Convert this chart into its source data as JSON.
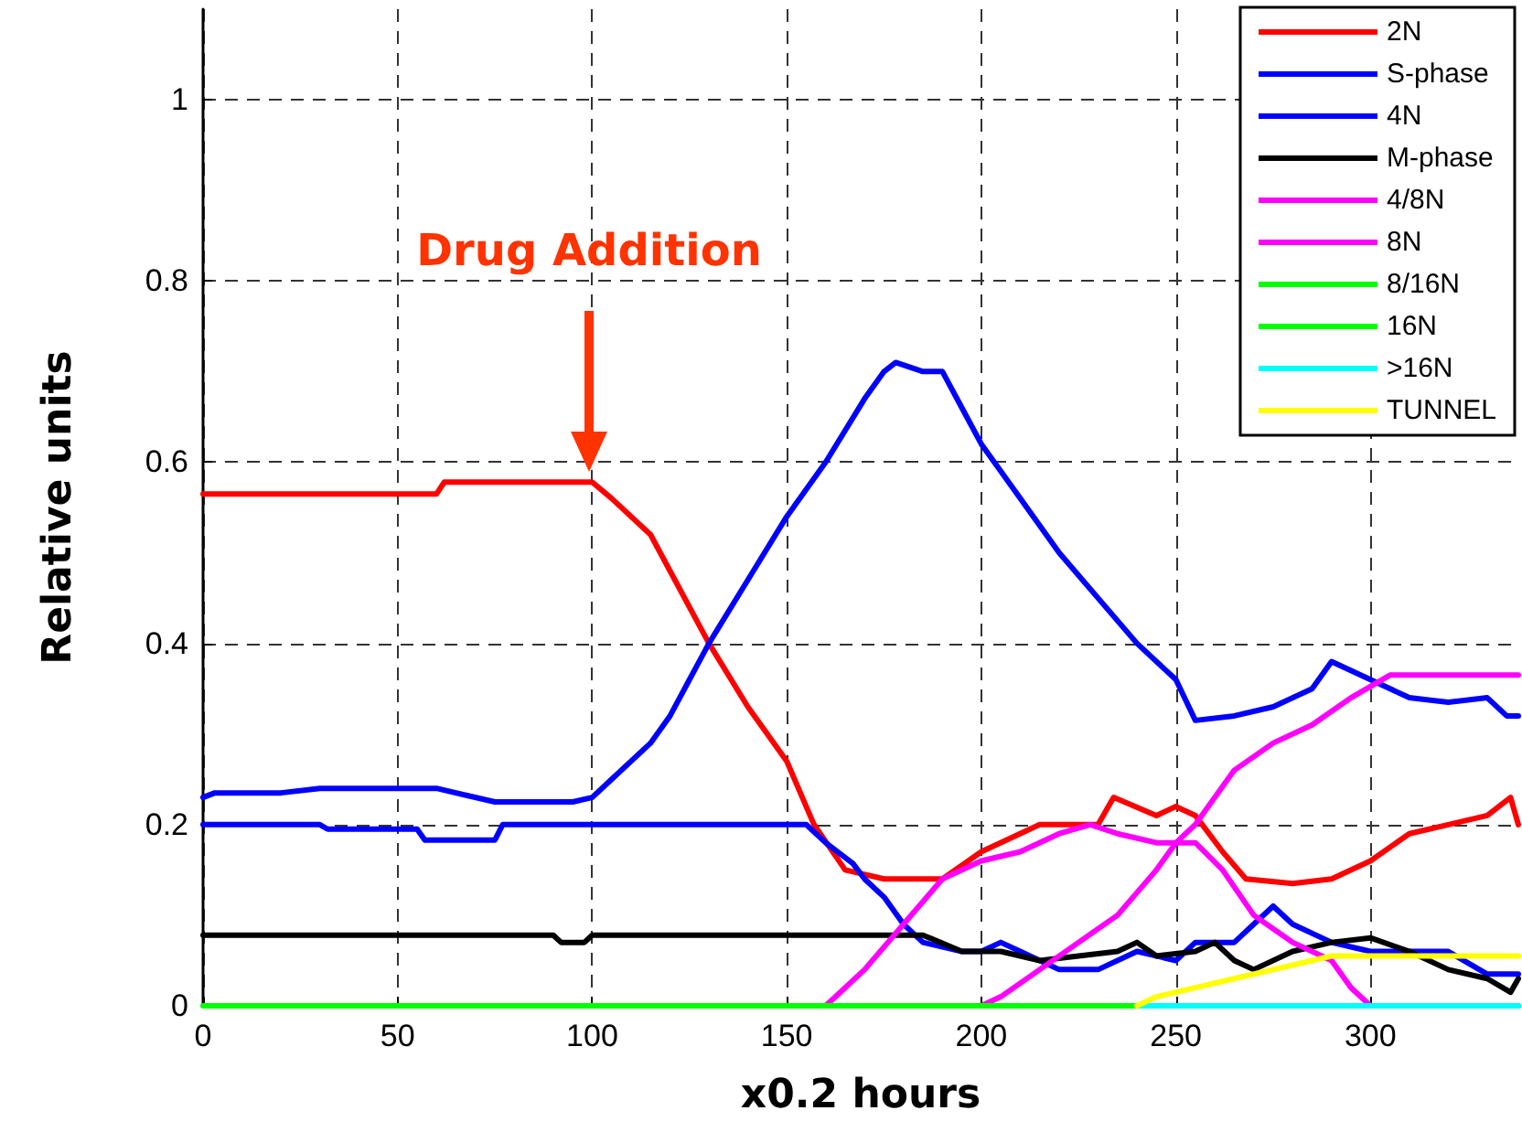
{
  "chart_data": {
    "type": "line",
    "xlabel": "x0.2 hours",
    "ylabel": "Relative units",
    "annotations": [
      "Drug Addition"
    ],
    "xlim": [
      0,
      338
    ],
    "xticks": [
      0,
      50,
      100,
      150,
      200,
      250,
      300
    ],
    "ylim": [
      0,
      1.1
    ],
    "yticks": [
      0,
      0.2,
      0.4,
      0.6,
      0.8,
      1
    ],
    "grid": true,
    "legend": "top right",
    "line_style": "solid",
    "series": [
      {
        "name": "2N",
        "color": "#ff0000",
        "x": [
          0,
          60,
          62,
          100,
          105,
          115,
          125,
          130,
          140,
          150,
          157,
          165,
          175,
          190,
          200,
          215,
          230,
          234,
          245,
          250,
          255,
          262,
          268,
          280,
          290,
          300,
          310,
          320,
          330,
          336,
          338
        ],
        "values": [
          0.565,
          0.565,
          0.578,
          0.578,
          0.56,
          0.52,
          0.44,
          0.4,
          0.33,
          0.27,
          0.2,
          0.15,
          0.14,
          0.14,
          0.17,
          0.2,
          0.2,
          0.23,
          0.21,
          0.22,
          0.21,
          0.17,
          0.14,
          0.135,
          0.14,
          0.16,
          0.19,
          0.2,
          0.21,
          0.23,
          0.2
        ]
      },
      {
        "name": "S-phase",
        "color": "#0000ff",
        "x": [
          0,
          3,
          20,
          30,
          60,
          75,
          95,
          100,
          105,
          115,
          120,
          125,
          130,
          140,
          150,
          160,
          170,
          175,
          178,
          185,
          190,
          195,
          200,
          210,
          220,
          230,
          240,
          250,
          255,
          265,
          275,
          285,
          290,
          300,
          310,
          320,
          330,
          335,
          338
        ],
        "values": [
          0.23,
          0.235,
          0.235,
          0.24,
          0.24,
          0.225,
          0.225,
          0.23,
          0.25,
          0.29,
          0.32,
          0.36,
          0.4,
          0.47,
          0.54,
          0.6,
          0.67,
          0.7,
          0.71,
          0.7,
          0.7,
          0.66,
          0.62,
          0.56,
          0.5,
          0.45,
          0.4,
          0.36,
          0.315,
          0.32,
          0.33,
          0.35,
          0.38,
          0.36,
          0.34,
          0.335,
          0.34,
          0.32,
          0.32
        ]
      },
      {
        "name": "4N",
        "color": "#0000ff",
        "x": [
          0,
          30,
          32,
          55,
          57,
          75,
          77,
          155,
          160,
          167,
          170,
          175,
          180,
          185,
          195,
          200,
          205,
          210,
          220,
          230,
          240,
          250,
          255,
          265,
          270,
          275,
          280,
          290,
          300,
          320,
          330,
          338
        ],
        "values": [
          0.2,
          0.2,
          0.195,
          0.195,
          0.183,
          0.183,
          0.2,
          0.2,
          0.18,
          0.157,
          0.14,
          0.12,
          0.09,
          0.07,
          0.06,
          0.06,
          0.07,
          0.06,
          0.04,
          0.04,
          0.06,
          0.05,
          0.07,
          0.07,
          0.09,
          0.11,
          0.09,
          0.07,
          0.06,
          0.06,
          0.035,
          0.035
        ]
      },
      {
        "name": "M-phase",
        "color": "#000000",
        "x": [
          0,
          90,
          92,
          98,
          100,
          185,
          195,
          205,
          215,
          225,
          235,
          240,
          245,
          255,
          260,
          265,
          270,
          280,
          290,
          300,
          310,
          320,
          330,
          336,
          338
        ],
        "values": [
          0.078,
          0.078,
          0.07,
          0.07,
          0.078,
          0.078,
          0.06,
          0.06,
          0.05,
          0.055,
          0.06,
          0.07,
          0.055,
          0.06,
          0.07,
          0.05,
          0.04,
          0.06,
          0.07,
          0.075,
          0.06,
          0.04,
          0.03,
          0.015,
          0.03
        ]
      },
      {
        "name": "4/8N",
        "color": "#ff00ff",
        "x": [
          160,
          165,
          170,
          180,
          190,
          200,
          210,
          220,
          228,
          235,
          245,
          255,
          262,
          270,
          280,
          290,
          295,
          300
        ],
        "values": [
          0,
          0.02,
          0.04,
          0.09,
          0.14,
          0.16,
          0.17,
          0.19,
          0.2,
          0.19,
          0.18,
          0.18,
          0.15,
          0.1,
          0.07,
          0.05,
          0.02,
          0
        ]
      },
      {
        "name": "8N",
        "color": "#ff00ff",
        "x": [
          200,
          205,
          215,
          225,
          235,
          245,
          250,
          255,
          260,
          265,
          275,
          285,
          295,
          305,
          338
        ],
        "values": [
          0,
          0.01,
          0.04,
          0.07,
          0.1,
          0.15,
          0.18,
          0.2,
          0.23,
          0.26,
          0.29,
          0.31,
          0.34,
          0.365,
          0.365
        ]
      },
      {
        "name": "8/16N",
        "color": "#00ff00"
      },
      {
        "name": "16N",
        "color": "#00ff00",
        "x": [
          0,
          338
        ],
        "values": [
          0,
          0
        ]
      },
      {
        "name": ">16N",
        "color": "#00ffff",
        "x": [
          240,
          338
        ],
        "values": [
          0,
          0
        ]
      },
      {
        "name": "TUNNEL",
        "color": "#ffff00",
        "x": [
          240,
          245,
          255,
          265,
          275,
          285,
          290,
          338
        ],
        "values": [
          0,
          0.01,
          0.02,
          0.03,
          0.04,
          0.05,
          0.055,
          0.055
        ]
      }
    ]
  }
}
